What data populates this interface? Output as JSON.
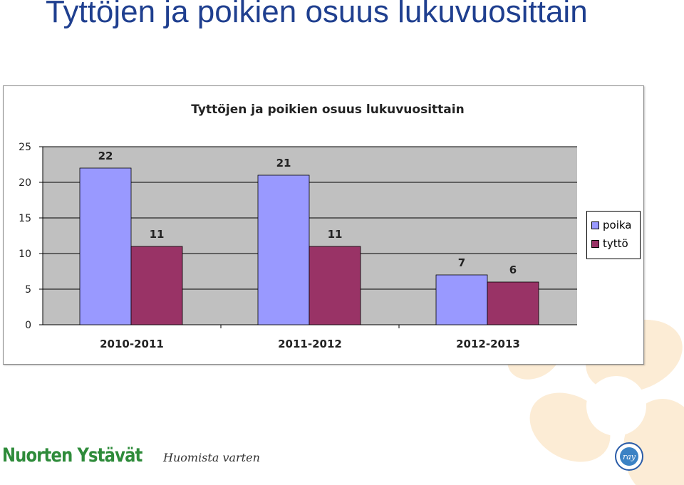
{
  "page": {
    "title": "Tyttöjen ja poikien osuus lukuvuosittain",
    "brand_name": "Nuorten Ystävät",
    "brand_tagline": "Huomista varten",
    "seal_text": "ray"
  },
  "colors": {
    "poika": "#9999ff",
    "tytto": "#993366",
    "plot_bg": "#c0c0c0",
    "title": "#1f3f8f"
  },
  "chart_data": {
    "type": "bar",
    "title": "Tyttöjen ja poikien osuus lukuvuosittain",
    "categories": [
      "2010-2011",
      "2011-2012",
      "2012-2013"
    ],
    "series": [
      {
        "name": "poika",
        "values": [
          22,
          21,
          7
        ]
      },
      {
        "name": "tyttö",
        "values": [
          11,
          11,
          6
        ]
      }
    ],
    "ylim": [
      0,
      25
    ],
    "yticks": [
      0,
      5,
      10,
      15,
      20,
      25
    ],
    "xlabel": "",
    "ylabel": "",
    "grid": true,
    "legend": "right"
  }
}
